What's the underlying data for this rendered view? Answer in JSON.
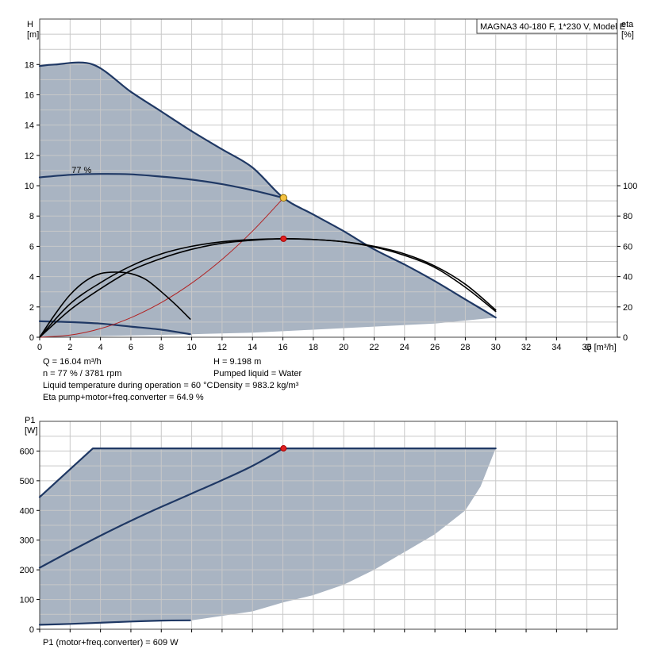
{
  "chart_data": [
    {
      "type": "line",
      "title": "MAGNA3 40-180 F, 1*230 V, Model E",
      "xlabel": "Q [m³/h]",
      "ylabel": "H\n[m]",
      "y2label": "eta\n[%]",
      "xlim": [
        0,
        38
      ],
      "ylim": [
        0,
        21
      ],
      "y2lim": [
        0,
        210
      ],
      "xticks": [
        0,
        2,
        4,
        6,
        8,
        10,
        12,
        14,
        16,
        18,
        20,
        22,
        24,
        26,
        28,
        30,
        32,
        34,
        36
      ],
      "yticks": [
        0,
        2,
        4,
        6,
        8,
        10,
        12,
        14,
        16,
        18
      ],
      "y2ticks": [
        0,
        20,
        40,
        60,
        80,
        100
      ],
      "grid": true,
      "annotations": [
        "77 %"
      ],
      "operating_area": {
        "upper": [
          [
            0,
            17.9
          ],
          [
            1,
            18
          ],
          [
            3.5,
            18
          ],
          [
            6,
            16.2
          ],
          [
            8,
            14.9
          ],
          [
            10,
            13.6
          ],
          [
            12,
            12.4
          ],
          [
            14,
            11.2
          ],
          [
            16,
            9.2
          ],
          [
            18,
            8.1
          ],
          [
            20,
            7
          ],
          [
            22,
            5.8
          ],
          [
            24,
            4.8
          ],
          [
            26,
            3.7
          ],
          [
            28,
            2.5
          ],
          [
            30,
            1.3
          ]
        ],
        "lower": [
          [
            0,
            0
          ],
          [
            10,
            0.2
          ],
          [
            14,
            0.3
          ],
          [
            18,
            0.5
          ],
          [
            22,
            0.7
          ],
          [
            26,
            0.9
          ],
          [
            28,
            1.1
          ],
          [
            30,
            1.3
          ]
        ]
      },
      "series": [
        {
          "name": "",
          "role": "max-speed-curve",
          "color": "#1f3864",
          "x": [
            0,
            1,
            3.5,
            6,
            8,
            10,
            12,
            14,
            16.04,
            18,
            20,
            22,
            24,
            26,
            28,
            30
          ],
          "values": [
            17.9,
            18,
            18,
            16.2,
            14.9,
            13.6,
            12.4,
            11.2,
            9.198,
            8.1,
            7.0,
            5.8,
            4.8,
            3.7,
            2.5,
            1.3
          ]
        },
        {
          "name": "",
          "role": "duty-speed-curve",
          "color": "#1f3864",
          "x": [
            0,
            2,
            4,
            6,
            8,
            10,
            12,
            14,
            16.04
          ],
          "values": [
            10.55,
            10.72,
            10.78,
            10.75,
            10.6,
            10.4,
            10.1,
            9.7,
            9.198
          ]
        },
        {
          "name": "",
          "role": "min-speed-curve",
          "color": "#1f3864",
          "x": [
            0,
            2,
            4,
            6,
            8,
            9.9
          ],
          "values": [
            1.05,
            1.0,
            0.9,
            0.7,
            0.5,
            0.2
          ]
        },
        {
          "name": "",
          "role": "system-curve",
          "color": "#b22222",
          "x": [
            0,
            2,
            4,
            6,
            8,
            10,
            12,
            14,
            16.04
          ],
          "values": [
            0,
            0.14,
            0.57,
            1.29,
            2.29,
            3.57,
            5.14,
            7.0,
            9.198
          ]
        },
        {
          "name": "",
          "role": "eta-curve",
          "color": "#000000",
          "axis": "y2",
          "x": [
            0,
            2,
            4,
            6,
            8,
            10,
            12,
            14,
            16,
            18,
            20,
            22,
            24,
            26,
            28,
            30
          ],
          "values": [
            0,
            22,
            36,
            47,
            55,
            60,
            63,
            64.5,
            65,
            64.5,
            63,
            59.5,
            54,
            46,
            33,
            17
          ]
        },
        {
          "name": "",
          "role": "eta-curve-2",
          "color": "#000000",
          "axis": "y2",
          "x": [
            0,
            2,
            4,
            6,
            8,
            10,
            12,
            14,
            16,
            18,
            20,
            22,
            24,
            26,
            28,
            30
          ],
          "values": [
            0,
            18,
            32,
            44,
            52,
            58,
            62,
            64,
            65,
            64.5,
            63,
            60,
            55,
            47,
            35,
            18
          ]
        },
        {
          "name": "",
          "role": "eta-curve-min",
          "color": "#000000",
          "axis": "y2",
          "x": [
            0,
            1,
            2,
            3,
            4,
            5,
            6,
            7,
            8,
            9,
            9.9
          ],
          "values": [
            0,
            15,
            28,
            37,
            42,
            43,
            42,
            38,
            30,
            21,
            12
          ]
        }
      ],
      "operating_point": {
        "x": 16.04,
        "y": 9.198,
        "eta": 65
      }
    },
    {
      "type": "line",
      "ylabel": "P1\n[W]",
      "xlim": [
        0,
        38
      ],
      "ylim": [
        0,
        700
      ],
      "yticks": [
        0,
        100,
        200,
        300,
        400,
        500,
        600
      ],
      "grid": true,
      "operating_area": {
        "upper": [
          [
            0,
            445
          ],
          [
            3.5,
            609
          ],
          [
            30,
            609
          ]
        ],
        "lower": [
          [
            0,
            15
          ],
          [
            5,
            25
          ],
          [
            10,
            30
          ],
          [
            14,
            60
          ],
          [
            16,
            90
          ],
          [
            18,
            115
          ],
          [
            20,
            150
          ],
          [
            22,
            200
          ],
          [
            24,
            260
          ],
          [
            26,
            320
          ],
          [
            28,
            400
          ],
          [
            29,
            480
          ],
          [
            30,
            609
          ]
        ]
      },
      "series": [
        {
          "name": "",
          "role": "max-power-curve",
          "color": "#1f3864",
          "x": [
            0,
            3.5,
            30
          ],
          "values": [
            445,
            609,
            609
          ]
        },
        {
          "name": "",
          "role": "duty-power-curve",
          "color": "#1f3864",
          "x": [
            0,
            2,
            4,
            6,
            8,
            10,
            12,
            14,
            16.04
          ],
          "values": [
            207,
            262,
            315,
            365,
            412,
            457,
            502,
            550,
            609
          ]
        },
        {
          "name": "",
          "role": "min-power-curve",
          "color": "#1f3864",
          "x": [
            0,
            2,
            4,
            6,
            8,
            9.9
          ],
          "values": [
            15,
            18,
            22,
            26,
            29,
            30
          ]
        }
      ],
      "operating_point": {
        "x": 16.04,
        "y": 609
      }
    }
  ],
  "info_left": [
    "Q = 16.04 m³/h",
    "n = 77 % / 3781 rpm",
    "Liquid temperature during operation = 60 °C",
    "Eta pump+motor+freq.converter = 64.9 %"
  ],
  "info_right": [
    "H = 9.198 m",
    "Pumped liquid = Water",
    "Density = 983.2 kg/m³"
  ],
  "footer": "P1 (motor+freq.converter) = 609 W",
  "colors": {
    "area": "#a9b4c2",
    "curve": "#1f3864",
    "system": "#b22222",
    "grid": "#c8c8c8",
    "point_yellow": "#f5c242",
    "point_red": "#e02020"
  }
}
